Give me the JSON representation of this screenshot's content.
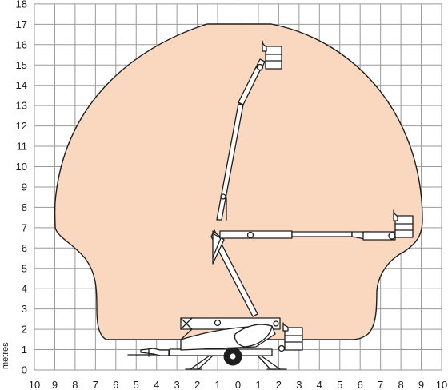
{
  "diagram": {
    "y_unit_label": "metres",
    "x_tick_labels": [
      "10",
      "9",
      "8",
      "7",
      "6",
      "5",
      "4",
      "3",
      "2",
      "1",
      "0",
      "1",
      "2",
      "3",
      "4",
      "5",
      "6",
      "7",
      "8",
      "9",
      "10"
    ],
    "y_tick_labels": [
      "0",
      "1",
      "2",
      "3",
      "4",
      "5",
      "6",
      "7",
      "8",
      "9",
      "10",
      "11",
      "12",
      "13",
      "14",
      "15",
      "16",
      "17",
      "18"
    ],
    "colors": {
      "working_envelope_fill": "#f9d8bf",
      "working_envelope_stroke": "#1e1e1e",
      "grid": "#9a9a9a",
      "machine": "#1e1e1e"
    }
  }
}
